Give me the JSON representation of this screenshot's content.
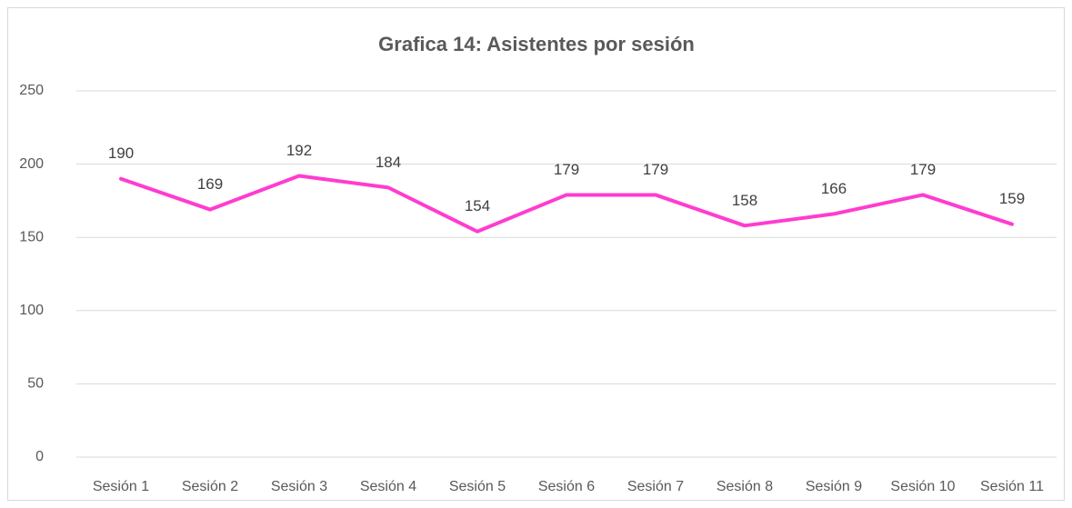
{
  "chart_data": {
    "type": "line",
    "title": "Grafica 14: Asistentes por sesión",
    "categories": [
      "Sesión 1",
      "Sesión 2",
      "Sesión 3",
      "Sesión 4",
      "Sesión 5",
      "Sesión 6",
      "Sesión 7",
      "Sesión 8",
      "Sesión 9",
      "Sesión 10",
      "Sesión 11"
    ],
    "values": [
      190,
      169,
      192,
      184,
      154,
      179,
      179,
      158,
      166,
      179,
      159
    ],
    "color": "#ff3ccf",
    "ylim": [
      0,
      250
    ],
    "yticks": [
      0,
      50,
      100,
      150,
      200,
      250
    ],
    "grid": true
  }
}
